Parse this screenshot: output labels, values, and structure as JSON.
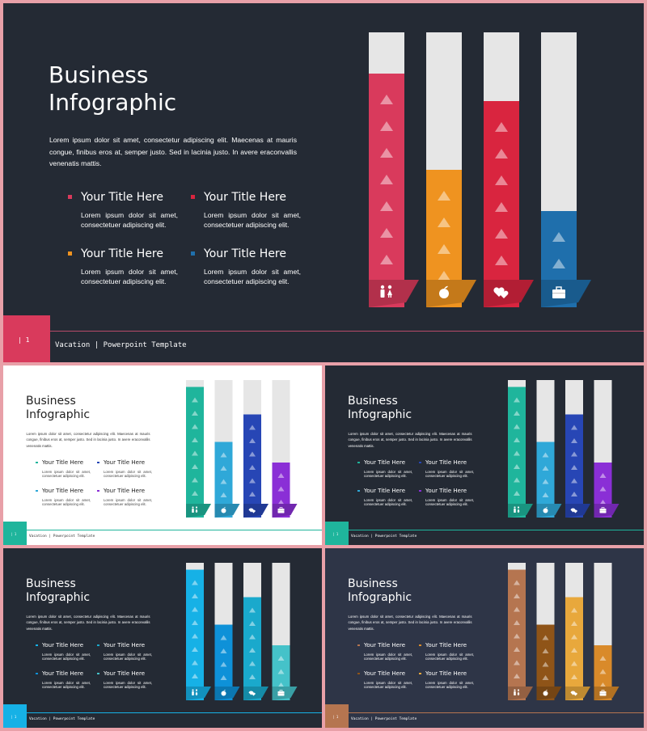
{
  "deck": {
    "title": "Business\nInfographic",
    "body": "Lorem ipsum dolor sit amet, consectetur adipiscing elit. Maecenas at mauris congue, finibus eros at, semper justo. Sed in lacinia justo. In avere eraconvallis venenatis mattis.",
    "items": [
      {
        "title": "Your Title Here",
        "desc": "Lorem ipsum dolor sit amet, consectetuer adipiscing elit."
      },
      {
        "title": "Your Title Here",
        "desc": "Lorem ipsum dolor sit amet, consectetuer adipiscing elit."
      },
      {
        "title": "Your Title Here",
        "desc": "Lorem ipsum dolor sit amet, consectetuer adipiscing elit."
      },
      {
        "title": "Your Title Here",
        "desc": "Lorem ipsum dolor sit amet, consectetuer adipiscing elit."
      }
    ],
    "page_label": "| 1",
    "footer": "Vacation | Powerpoint Template",
    "icons": [
      "people-icon",
      "apple-icon",
      "hearts-icon",
      "briefcase-icon"
    ]
  },
  "slides": [
    {
      "name": "main",
      "bg": "#242a34",
      "title_color": "#ffffff",
      "body_color": "#ffffff",
      "desc_color": "#ffffff",
      "track": "#e6e6e6",
      "accent": "#d93a5c",
      "line": "#b84a68",
      "page_color": "#ffffff",
      "footer_color": "#ffffff",
      "colors": [
        "#d93a5c",
        "#ef9320",
        "#d9253f",
        "#1f6fac"
      ],
      "item_colors": [
        "#d93a5c",
        "#d9253f",
        "#ef9320",
        "#1f6fac"
      ],
      "chart_data": {
        "type": "bar",
        "values": [
          85,
          50,
          75,
          35
        ],
        "ylim": [
          0,
          100
        ]
      }
    },
    {
      "name": "white",
      "bg": "#ffffff",
      "title_color": "#222222",
      "body_color": "#333333",
      "desc_color": "#444444",
      "track": "#e6e6e6",
      "accent": "#1fb59c",
      "line": "#1fb59c",
      "page_color": "#ffffff",
      "footer_color": "#333333",
      "colors": [
        "#1fb59c",
        "#2fa8d8",
        "#2746b5",
        "#8a2fd6"
      ],
      "item_colors": [
        "#1fb59c",
        "#2746b5",
        "#2fa8d8",
        "#8a2fd6"
      ],
      "chart_data": {
        "type": "bar",
        "values": [
          95,
          55,
          75,
          40
        ],
        "ylim": [
          0,
          100
        ]
      }
    },
    {
      "name": "dark-green",
      "bg": "#242a34",
      "title_color": "#ffffff",
      "body_color": "#ffffff",
      "desc_color": "#ffffff",
      "track": "#e6e6e6",
      "accent": "#1fb59c",
      "line": "#1fb59c",
      "page_color": "#ffffff",
      "footer_color": "#ffffff",
      "colors": [
        "#1fb59c",
        "#2fa8d8",
        "#2746b5",
        "#8a2fd6"
      ],
      "item_colors": [
        "#1fb59c",
        "#2746b5",
        "#2fa8d8",
        "#8a2fd6"
      ],
      "chart_data": {
        "type": "bar",
        "values": [
          95,
          55,
          75,
          40
        ],
        "ylim": [
          0,
          100
        ]
      }
    },
    {
      "name": "dark-blue",
      "bg": "#242a34",
      "title_color": "#ffffff",
      "body_color": "#ffffff",
      "desc_color": "#ffffff",
      "track": "#e6e6e6",
      "accent": "#16b1e6",
      "line": "#16b1e6",
      "page_color": "#ffffff",
      "footer_color": "#ffffff",
      "colors": [
        "#16b1e6",
        "#0e91d8",
        "#1aa9cc",
        "#45c2c9"
      ],
      "item_colors": [
        "#16b1e6",
        "#1aa9cc",
        "#0e91d8",
        "#45c2c9"
      ],
      "chart_data": {
        "type": "bar",
        "values": [
          95,
          55,
          75,
          40
        ],
        "ylim": [
          0,
          100
        ]
      }
    },
    {
      "name": "navy-brown",
      "bg": "#2e3547",
      "title_color": "#ffffff",
      "body_color": "#ffffff",
      "desc_color": "#ffffff",
      "track": "#e6e6e6",
      "accent": "#b57550",
      "line": "#b57550",
      "page_color": "#ffffff",
      "footer_color": "#ffffff",
      "colors": [
        "#b57550",
        "#8f5418",
        "#e8a83c",
        "#d98a2a"
      ],
      "item_colors": [
        "#b57550",
        "#d98a2a",
        "#8f5418",
        "#e8a83c"
      ],
      "chart_data": {
        "type": "bar",
        "values": [
          95,
          55,
          75,
          40
        ],
        "ylim": [
          0,
          100
        ]
      }
    }
  ]
}
